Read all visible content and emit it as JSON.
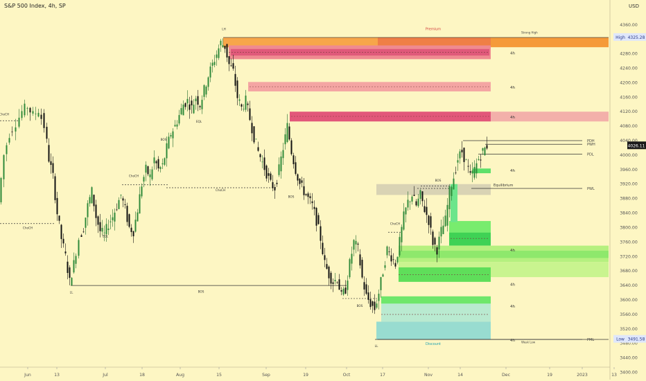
{
  "header": {
    "symbol_title": "S&P 500 Index, 4h, SP",
    "currency": "USD"
  },
  "chart_data": {
    "type": "candlestick",
    "ylim": [
      3380,
      4380
    ],
    "y_ticks": [
      3400,
      3440,
      3480,
      3520,
      3560,
      3600,
      3640,
      3680,
      3720,
      3760,
      3800,
      3840,
      3880,
      3920,
      3960,
      4000,
      4040,
      4080,
      4120,
      4160,
      4200,
      4240,
      4280,
      4320,
      4360
    ],
    "x_ticks": [
      "Jun",
      "13",
      "Jul",
      "18",
      "Aug",
      "15",
      "Sep",
      "19",
      "Oct",
      "17",
      "Nov",
      "14",
      "Dec",
      "19",
      "2023",
      "13"
    ],
    "price_badges": [
      {
        "label": "High",
        "value": "4325.28",
        "price": 4325.28,
        "style": "blue"
      },
      {
        "label": "",
        "value": "4026.11",
        "price": 4026.11,
        "style": "dark"
      },
      {
        "label": "Low",
        "value": "3491.58",
        "price": 3491.58,
        "style": "blue"
      }
    ],
    "zones": [
      {
        "type": "premium",
        "label": "Premium",
        "top": 4325.28,
        "bottom": 4325.28
      },
      {
        "type": "discount",
        "label": "Discount",
        "top": 3491.58,
        "bottom": 3491.58
      },
      {
        "type": "equilibrium",
        "label": "Equilibrium",
        "price": 3908
      }
    ],
    "order_blocks": [
      {
        "kind": "bear",
        "timeframe": "4h",
        "top": 4325,
        "bottom": 4298
      },
      {
        "kind": "bear",
        "timeframe": "4h",
        "top": 4304,
        "bottom": 4265
      },
      {
        "kind": "bear",
        "timeframe": "4h",
        "top": 4203,
        "bottom": 4175
      },
      {
        "kind": "bear",
        "timeframe": "4h",
        "top": 4120,
        "bottom": 4094
      },
      {
        "kind": "bull",
        "timeframe": "4h",
        "top": 3963,
        "bottom": 3950
      },
      {
        "kind": "bull",
        "timeframe": "4h",
        "top": 3751,
        "bottom": 3705
      },
      {
        "kind": "bull",
        "timeframe": "4h",
        "top": 3687,
        "bottom": 3652
      },
      {
        "kind": "bull",
        "timeframe": "4h",
        "top": 3608,
        "bottom": 3585
      },
      {
        "kind": "bull",
        "timeframe": "4h",
        "top": 3585,
        "bottom": 3491
      }
    ],
    "level_labels": [
      "PDH",
      "PWH",
      "PDL",
      "PWL",
      "PML"
    ],
    "swing_labels": [
      "Strong High",
      "Weak Low"
    ],
    "structure_labels": [
      "LH",
      "LL",
      "LL",
      "BOS",
      "BOS",
      "BOS",
      "BOS",
      "BOS",
      "ChoCH",
      "ChoCH",
      "ChoCH",
      "ChoCH",
      "ChoCH",
      "EQL",
      "EQL"
    ]
  }
}
